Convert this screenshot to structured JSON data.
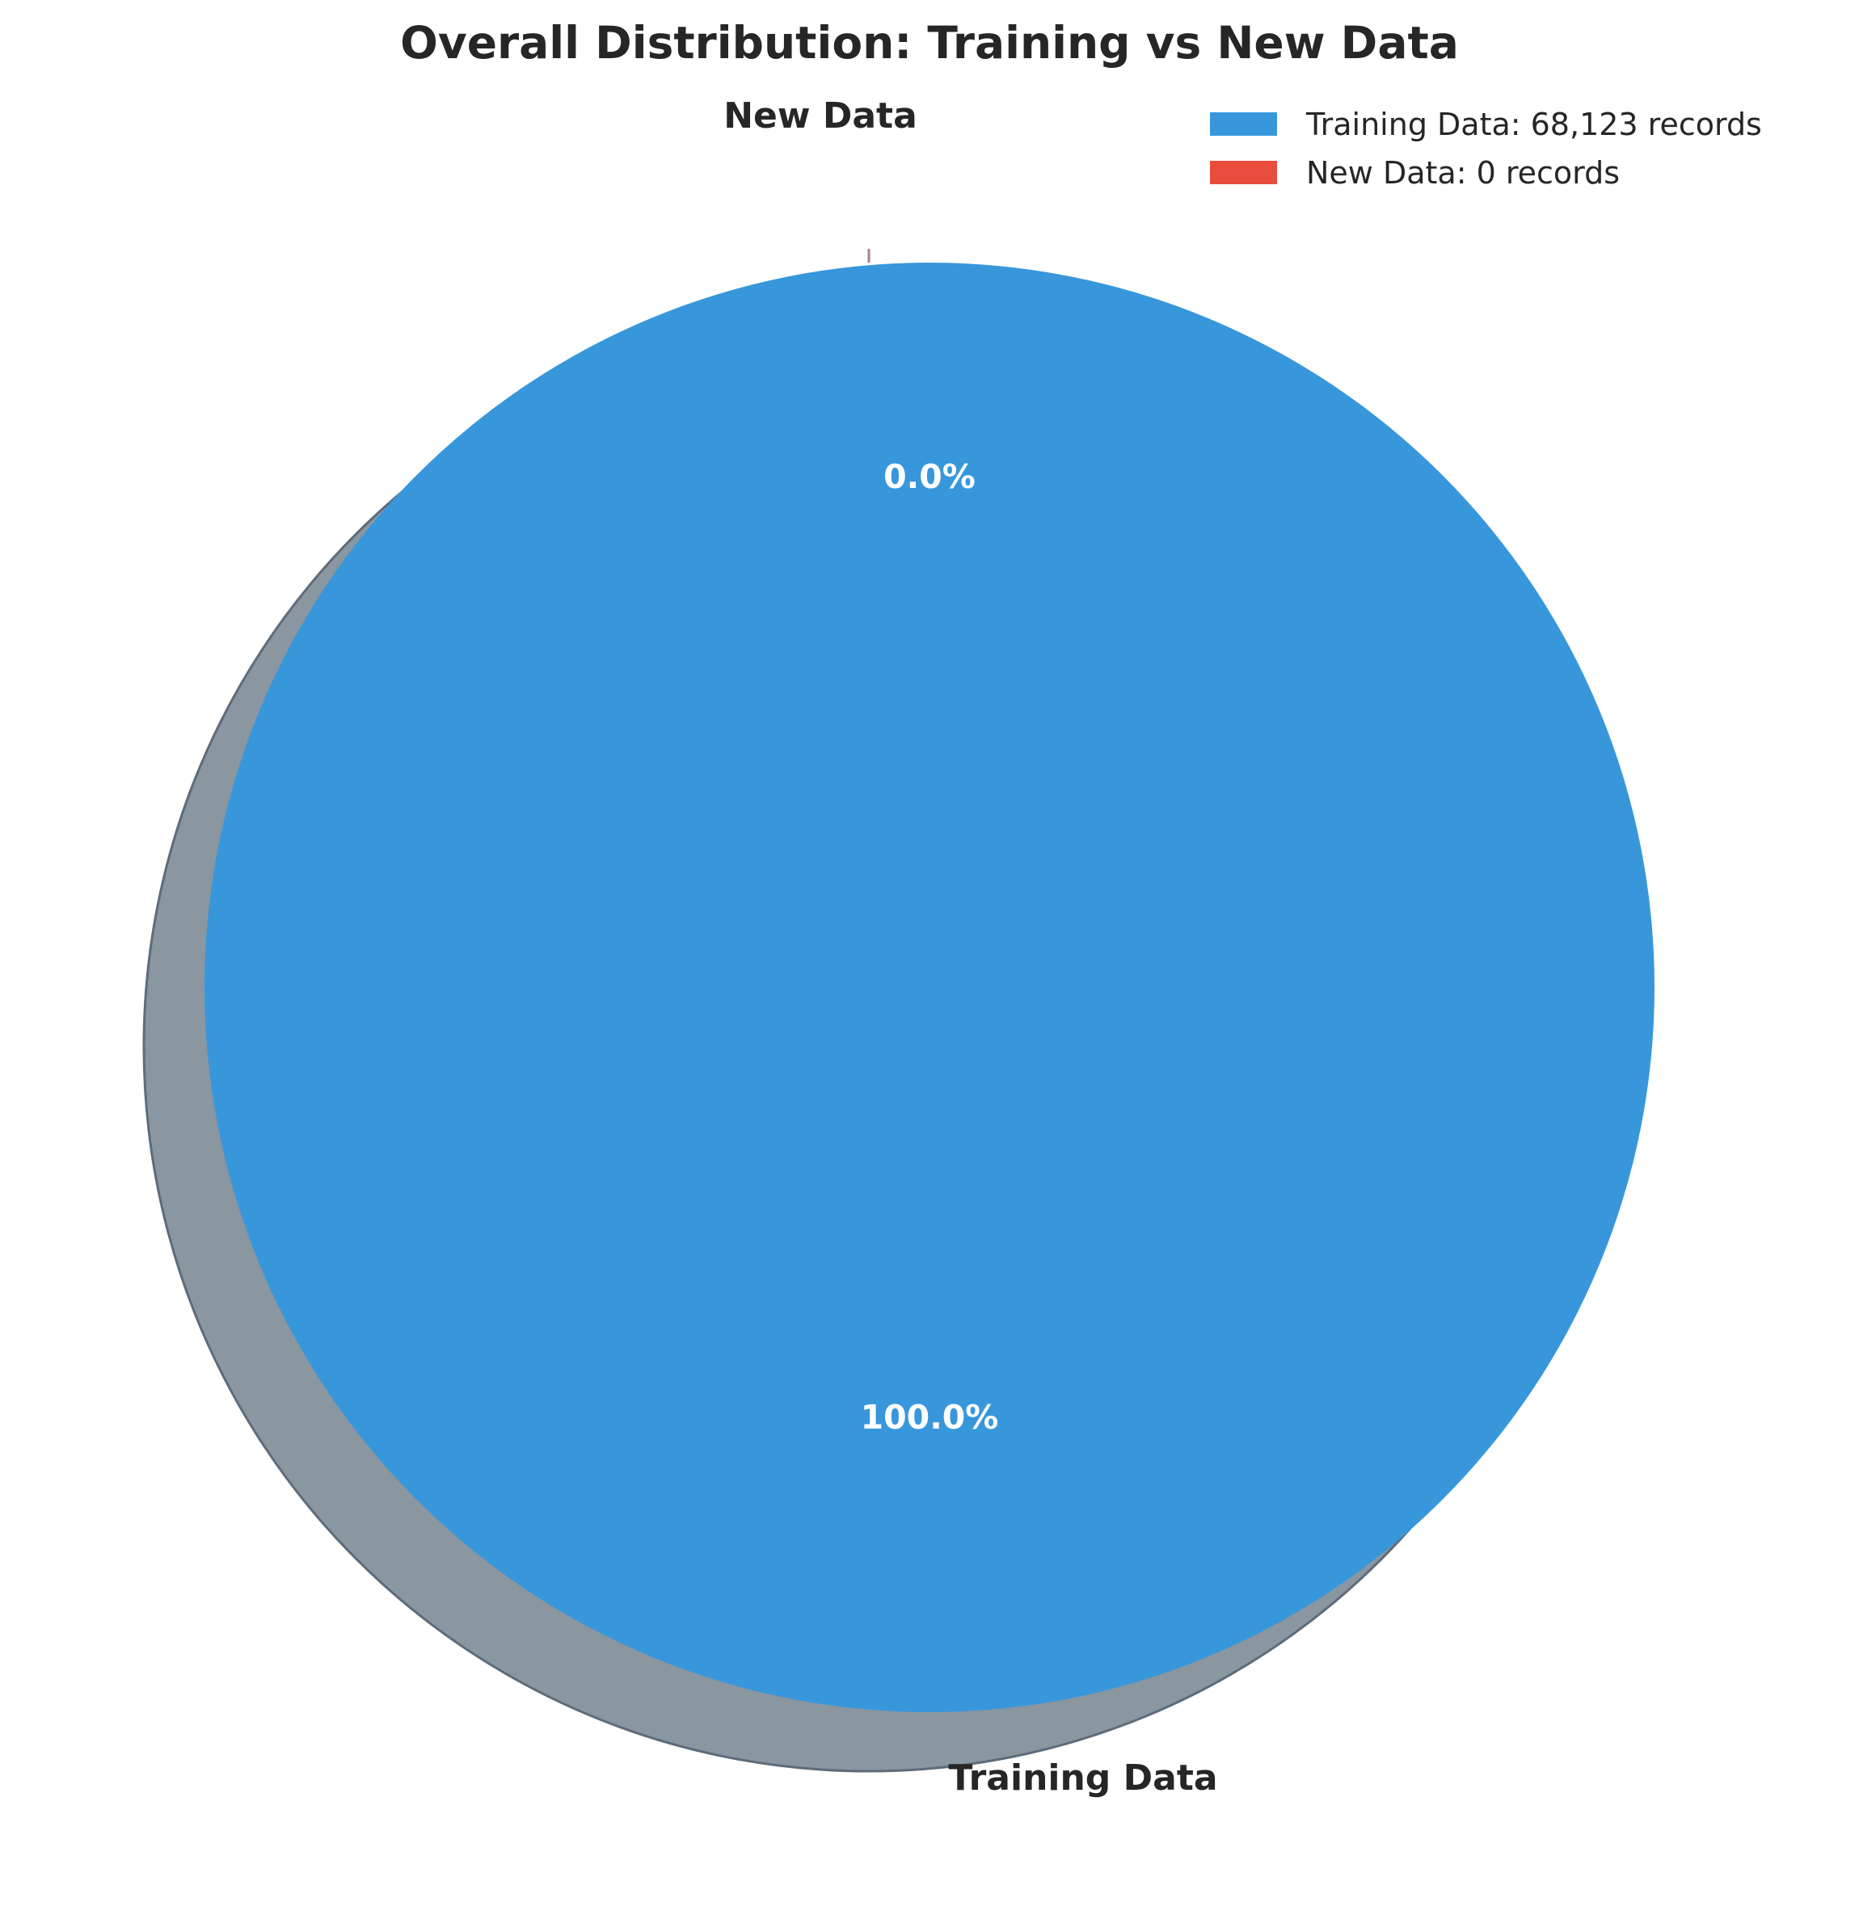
{
  "chart_data": {
    "type": "pie",
    "title": "Overall Distribution: Training vs New Data",
    "slices": [
      {
        "label": "Training Data",
        "value": 68123,
        "percent_label": "100.0%",
        "legend_label": "Training Data: 68,123 records",
        "color": "#3897db"
      },
      {
        "label": "New Data",
        "value": 0,
        "percent_label": "0.0%",
        "legend_label": "New Data: 0 records",
        "color": "#e74c3c"
      }
    ],
    "shadow": true,
    "shadow_color": "#8a96a0",
    "legend": {
      "position": "top-right"
    }
  }
}
